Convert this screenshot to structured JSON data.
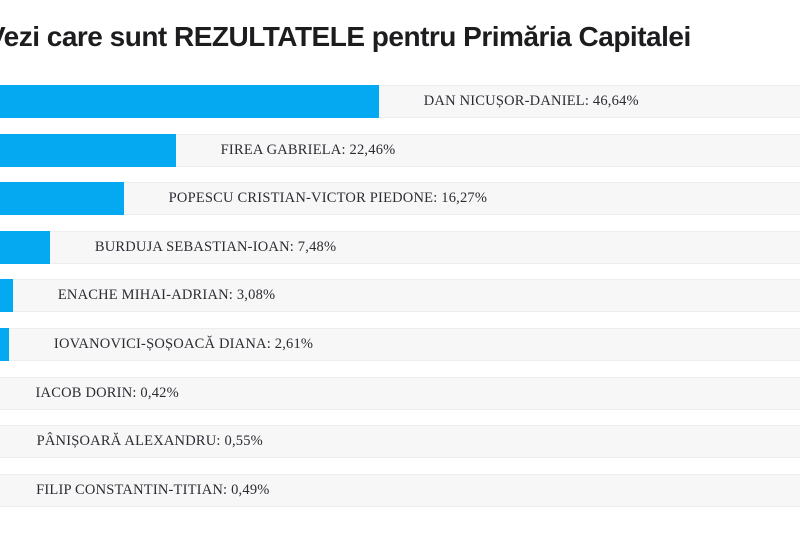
{
  "page": {
    "title": "Vezi care sunt REZULTATELE pentru Primăria Capitalei"
  },
  "colors": {
    "bar": "#04a9f1",
    "row_background": "#f7f7f7",
    "row_border": "#ededed",
    "label_text": "#2b2b33",
    "title_text": "#1d1d1f"
  },
  "chart_data": {
    "type": "bar",
    "orientation": "horizontal",
    "title": "Vezi care sunt REZULTATELE pentru Primăria Capitalei",
    "xlabel": "",
    "ylabel": "",
    "xlim": [
      0,
      100
    ],
    "grid": false,
    "legend": false,
    "value_format": "comma-decimal-percent",
    "categories": [
      "DAN NICUȘOR-DANIEL",
      "FIREA GABRIELA",
      "POPESCU CRISTIAN-VICTOR PIEDONE",
      "BURDUJA SEBASTIAN-IOAN",
      "ENACHE MIHAI-ADRIAN",
      "IOVANOVICI-ȘOȘOACĂ DIANA",
      "IACOB DORIN",
      "PÂNIȘOARĂ ALEXANDRU",
      "FILIP CONSTANTIN-TITIAN"
    ],
    "values": [
      46.64,
      22.46,
      16.27,
      7.48,
      3.08,
      2.61,
      0.42,
      0.55,
      0.49
    ],
    "labels": [
      "DAN NICUȘOR-DANIEL: 46,64%",
      "FIREA GABRIELA: 22,46%",
      "POPESCU CRISTIAN-VICTOR PIEDONE: 16,27%",
      "BURDUJA SEBASTIAN-IOAN: 7,48%",
      "ENACHE MIHAI-ADRIAN: 3,08%",
      "IOVANOVICI-ȘOȘOACĂ DIANA: 2,61%",
      "IACOB DORIN: 0,42%",
      "PÂNIȘOARĂ ALEXANDRU: 0,55%",
      "FILIP CONSTANTIN-TITIAN: 0,49%"
    ]
  }
}
